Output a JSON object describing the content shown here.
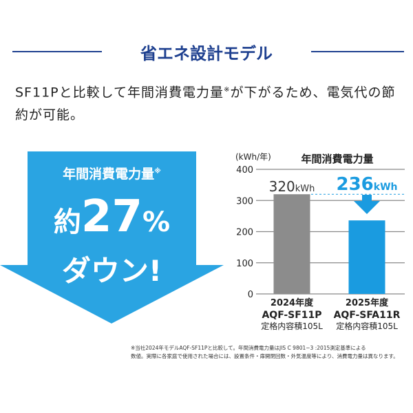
{
  "header": {
    "title": "省エネ設計モデル",
    "lead": "SF11Pと比較して年間消費電力量",
    "lead_mark": "※",
    "lead_rest": "が下がるため、電気代の節約が可能。"
  },
  "badge": {
    "label": "年間消費電力量",
    "mark": "※",
    "prefix": "約",
    "value": "27",
    "unit": "%",
    "suffix": "ダウン!",
    "color": "#2aa4e2"
  },
  "chart_data": {
    "type": "bar",
    "title": "年間消費電力量",
    "ylabel": "(kWh/年)",
    "ylim": [
      0,
      400
    ],
    "yticks": [
      "0",
      "100",
      "200",
      "300",
      "400"
    ],
    "grid": true,
    "categories": [
      {
        "year": "2024年度",
        "model": "AQF-SF11P",
        "capacity": "定格内容積105L"
      },
      {
        "year": "2025年度",
        "model": "AQF-SFA11R",
        "capacity": "定格内容積105L"
      }
    ],
    "values": [
      320,
      236
    ],
    "data_labels": [
      {
        "num": "320",
        "unit": "kWh"
      },
      {
        "num": "236",
        "unit": "kWh"
      }
    ],
    "colors": [
      "#8c8c8c",
      "#1a9be0"
    ]
  },
  "footnote": [
    "※当社2024年モデルAQF-SF11Pと比較して。年間消費電力量はJIS C 9801−3 :2015測定基準による",
    "数値。実際に各家庭で使用された場合には、設置条件・扉開閉回数・外気温度等により、消費電力量は異なります。"
  ]
}
